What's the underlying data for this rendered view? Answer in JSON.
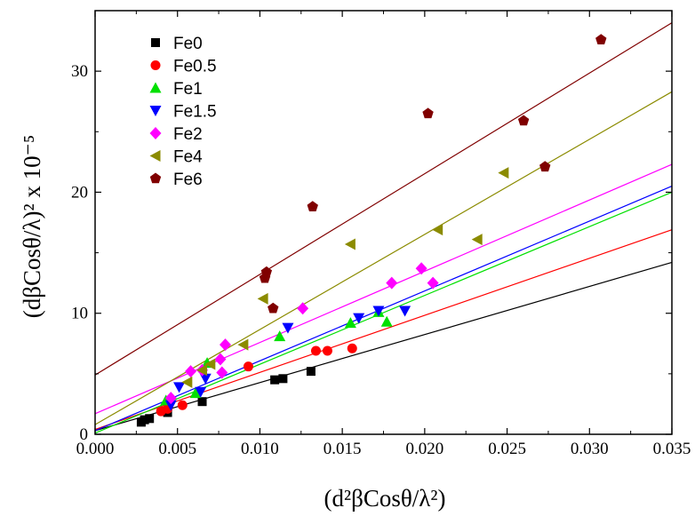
{
  "chart_data": {
    "type": "scatter",
    "xlabel": "(d²βCosθ/λ²)",
    "ylabel": "(dβCosθ/λ)² x 10⁻⁵",
    "xlim": [
      0.0,
      0.035
    ],
    "ylim": [
      0,
      35
    ],
    "xticks": [
      "0.000",
      "0.005",
      "0.010",
      "0.015",
      "0.020",
      "0.025",
      "0.030",
      "0.035"
    ],
    "yticks": [
      "0",
      "10",
      "20",
      "30"
    ],
    "xtick_values": [
      0.0,
      0.005,
      0.01,
      0.015,
      0.02,
      0.025,
      0.03,
      0.035
    ],
    "ytick_values": [
      0,
      10,
      20,
      30
    ],
    "grid": false,
    "legend_position": "top-left",
    "series": [
      {
        "name": "Fe0",
        "color": "#000000",
        "marker": "square",
        "points": [
          [
            0.0028,
            1.0
          ],
          [
            0.003,
            1.2
          ],
          [
            0.0033,
            1.3
          ],
          [
            0.0044,
            1.8
          ],
          [
            0.0065,
            2.7
          ],
          [
            0.0109,
            4.5
          ],
          [
            0.0114,
            4.6
          ],
          [
            0.0131,
            5.2
          ]
        ],
        "fit": [
          [
            0,
            0.3
          ],
          [
            0.035,
            14.2
          ]
        ]
      },
      {
        "name": "Fe0.5",
        "color": "#ff0000",
        "marker": "circle",
        "points": [
          [
            0.004,
            1.9
          ],
          [
            0.0044,
            2.1
          ],
          [
            0.0053,
            2.4
          ],
          [
            0.0093,
            5.6
          ],
          [
            0.0134,
            6.9
          ],
          [
            0.0141,
            6.9
          ],
          [
            0.0156,
            7.1
          ]
        ],
        "fit": [
          [
            0,
            0.4
          ],
          [
            0.035,
            16.9
          ]
        ]
      },
      {
        "name": "Fe1",
        "color": "#00e000",
        "marker": "triangle-up",
        "points": [
          [
            0.0043,
            2.8
          ],
          [
            0.0061,
            3.4
          ],
          [
            0.0068,
            5.9
          ],
          [
            0.0112,
            8.1
          ],
          [
            0.0155,
            9.2
          ],
          [
            0.0172,
            10.1
          ],
          [
            0.0177,
            9.3
          ]
        ],
        "fit": [
          [
            0,
            0.1
          ],
          [
            0.035,
            20.0
          ]
        ]
      },
      {
        "name": "Fe1.5",
        "color": "#0000ff",
        "marker": "triangle-down",
        "points": [
          [
            0.0046,
            2.4
          ],
          [
            0.0051,
            3.9
          ],
          [
            0.0064,
            3.5
          ],
          [
            0.0067,
            4.6
          ],
          [
            0.0117,
            8.8
          ],
          [
            0.016,
            9.6
          ],
          [
            0.0172,
            10.2
          ],
          [
            0.0188,
            10.2
          ]
        ],
        "fit": [
          [
            0,
            0.3
          ],
          [
            0.035,
            20.5
          ]
        ]
      },
      {
        "name": "Fe2",
        "color": "#ff00ff",
        "marker": "diamond",
        "points": [
          [
            0.0046,
            3.0
          ],
          [
            0.0058,
            5.2
          ],
          [
            0.0065,
            5.3
          ],
          [
            0.0076,
            6.2
          ],
          [
            0.0077,
            5.1
          ],
          [
            0.0079,
            7.4
          ],
          [
            0.0126,
            10.4
          ],
          [
            0.018,
            12.5
          ],
          [
            0.0198,
            13.7
          ],
          [
            0.0205,
            12.5
          ]
        ],
        "fit": [
          [
            0,
            1.7
          ],
          [
            0.035,
            22.3
          ]
        ]
      },
      {
        "name": "Fe4",
        "color": "#8b8b00",
        "marker": "triangle-left",
        "points": [
          [
            0.0056,
            4.3
          ],
          [
            0.0065,
            5.3
          ],
          [
            0.007,
            5.8
          ],
          [
            0.009,
            7.4
          ],
          [
            0.0102,
            11.2
          ],
          [
            0.0155,
            15.7
          ],
          [
            0.0208,
            16.9
          ],
          [
            0.0232,
            16.1
          ],
          [
            0.0248,
            21.6
          ]
        ],
        "fit": [
          [
            0,
            0.8
          ],
          [
            0.035,
            28.3
          ]
        ]
      },
      {
        "name": "Fe6",
        "color": "#800000",
        "marker": "pentagon",
        "points": [
          [
            0.0103,
            12.9
          ],
          [
            0.0104,
            13.4
          ],
          [
            0.0108,
            10.4
          ],
          [
            0.0132,
            18.8
          ],
          [
            0.0202,
            26.5
          ],
          [
            0.026,
            25.9
          ],
          [
            0.0273,
            22.1
          ],
          [
            0.0307,
            32.6
          ]
        ],
        "fit": [
          [
            0,
            4.9
          ],
          [
            0.035,
            34.0
          ]
        ]
      }
    ]
  }
}
